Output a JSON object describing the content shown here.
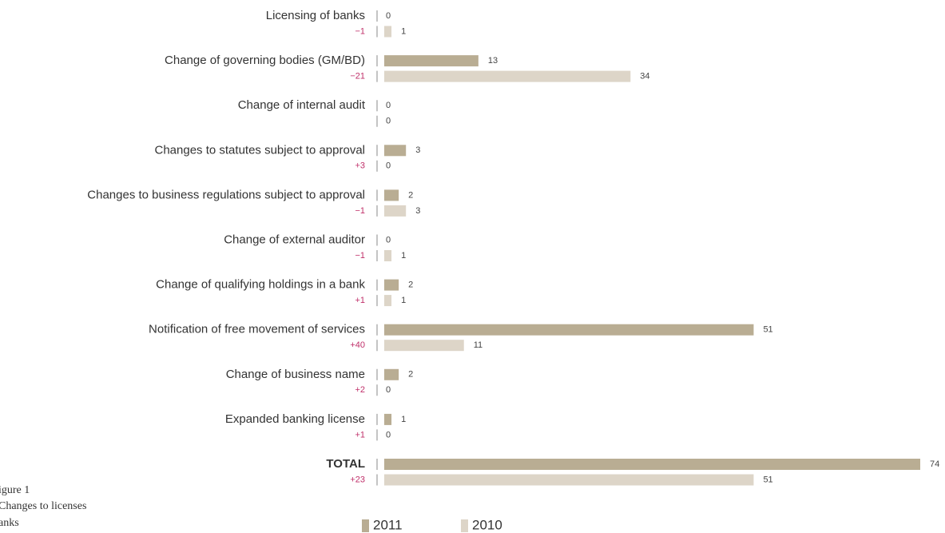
{
  "chart_data": {
    "type": "bar",
    "caption": [
      "igure 1",
      "Changes to licenses",
      "anks"
    ],
    "categories": [
      "Licensing of banks",
      "Change of governing bodies (GM/BD)",
      "Change of internal audit",
      "Changes to statutes subject to approval",
      "Changes to business regulations subject to approval",
      "Change of external auditor",
      "Change of qualifying holdings in a bank",
      "Notification of free movement of services",
      "Change of business name",
      "Expanded banking license",
      "TOTAL"
    ],
    "change_labels": [
      "−1",
      "−21",
      null,
      "+3",
      "−1",
      "−1",
      "+1",
      "+40",
      "+2",
      "+1",
      "+23"
    ],
    "series": [
      {
        "name": "2011",
        "color": "#b9ad93",
        "values": [
          0,
          13,
          0,
          3,
          2,
          0,
          2,
          51,
          2,
          1,
          74
        ]
      },
      {
        "name": "2010",
        "color": "#ddd5c8",
        "values": [
          1,
          34,
          0,
          0,
          3,
          1,
          1,
          11,
          0,
          0,
          51
        ]
      }
    ]
  }
}
